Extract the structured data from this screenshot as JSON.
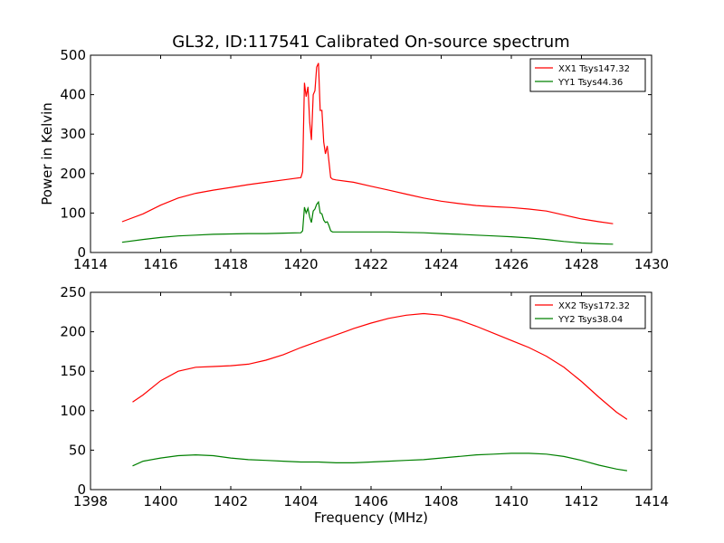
{
  "figure": {
    "title": "GL32, ID:117541 Calibrated On-source spectrum",
    "ylabel": "Power in Kelvin",
    "xlabel": "Frequency (MHz)"
  },
  "chart_data": [
    {
      "type": "line",
      "title": "GL32, ID:117541 Calibrated On-source spectrum",
      "xlabel": "",
      "ylabel": "Power in Kelvin",
      "xlim": [
        1414,
        1430
      ],
      "ylim": [
        0,
        500
      ],
      "xticks": [
        1414,
        1416,
        1418,
        1420,
        1422,
        1424,
        1426,
        1428,
        1430
      ],
      "yticks": [
        0,
        100,
        200,
        300,
        400,
        500
      ],
      "legend_position": "top-right",
      "grid": false,
      "series": [
        {
          "name": "XX1 Tsys147.32",
          "color": "#ff0000",
          "x": [
            1414.9,
            1415.5,
            1416.0,
            1416.5,
            1417.0,
            1417.5,
            1418.0,
            1418.5,
            1419.0,
            1419.5,
            1420.0,
            1420.05,
            1420.1,
            1420.15,
            1420.2,
            1420.25,
            1420.3,
            1420.35,
            1420.4,
            1420.45,
            1420.5,
            1420.55,
            1420.6,
            1420.65,
            1420.7,
            1420.75,
            1420.8,
            1420.85,
            1420.9,
            1421.0,
            1421.5,
            1422.0,
            1422.5,
            1423.0,
            1423.5,
            1424.0,
            1424.5,
            1425.0,
            1425.5,
            1426.0,
            1426.5,
            1427.0,
            1427.5,
            1428.0,
            1428.5,
            1428.9
          ],
          "y": [
            78,
            98,
            120,
            138,
            150,
            158,
            165,
            172,
            178,
            184,
            190,
            205,
            430,
            395,
            420,
            330,
            285,
            400,
            410,
            470,
            480,
            360,
            360,
            280,
            250,
            270,
            230,
            190,
            186,
            184,
            178,
            168,
            158,
            148,
            138,
            130,
            124,
            119,
            116,
            114,
            110,
            105,
            95,
            85,
            78,
            73
          ]
        },
        {
          "name": "YY1 Tsys44.36",
          "color": "#008000",
          "x": [
            1414.9,
            1415.5,
            1416.0,
            1416.5,
            1417.0,
            1417.5,
            1418.0,
            1418.5,
            1419.0,
            1419.5,
            1420.0,
            1420.05,
            1420.1,
            1420.15,
            1420.2,
            1420.25,
            1420.3,
            1420.35,
            1420.4,
            1420.45,
            1420.5,
            1420.55,
            1420.6,
            1420.65,
            1420.7,
            1420.75,
            1420.8,
            1420.85,
            1420.9,
            1421.0,
            1421.5,
            1422.0,
            1422.5,
            1423.0,
            1423.5,
            1424.0,
            1424.5,
            1425.0,
            1425.5,
            1426.0,
            1426.5,
            1427.0,
            1427.5,
            1428.0,
            1428.5,
            1428.9
          ],
          "y": [
            26,
            33,
            38,
            42,
            44,
            46,
            47,
            48,
            48,
            49,
            50,
            55,
            115,
            100,
            112,
            90,
            76,
            105,
            110,
            122,
            128,
            100,
            98,
            82,
            76,
            78,
            68,
            55,
            52,
            52,
            52,
            52,
            52,
            51,
            50,
            48,
            46,
            44,
            42,
            40,
            37,
            33,
            28,
            24,
            22,
            21
          ]
        }
      ]
    },
    {
      "type": "line",
      "title": "",
      "xlabel": "Frequency (MHz)",
      "ylabel": "",
      "xlim": [
        1398,
        1414
      ],
      "ylim": [
        0,
        250
      ],
      "xticks": [
        1398,
        1400,
        1402,
        1404,
        1406,
        1408,
        1410,
        1412,
        1414
      ],
      "yticks": [
        0,
        50,
        100,
        150,
        200,
        250
      ],
      "legend_position": "top-right",
      "grid": false,
      "series": [
        {
          "name": "XX2 Tsys172.32",
          "color": "#ff0000",
          "x": [
            1399.2,
            1399.5,
            1400.0,
            1400.5,
            1401.0,
            1401.5,
            1402.0,
            1402.5,
            1403.0,
            1403.5,
            1404.0,
            1404.5,
            1405.0,
            1405.5,
            1406.0,
            1406.5,
            1407.0,
            1407.5,
            1408.0,
            1408.5,
            1409.0,
            1409.5,
            1410.0,
            1410.5,
            1411.0,
            1411.5,
            1412.0,
            1412.5,
            1413.0,
            1413.3
          ],
          "y": [
            111,
            120,
            138,
            150,
            155,
            156,
            157,
            159,
            164,
            171,
            180,
            188,
            196,
            204,
            211,
            217,
            221,
            223,
            221,
            215,
            207,
            198,
            189,
            180,
            169,
            155,
            137,
            117,
            98,
            89
          ]
        },
        {
          "name": "YY2 Tsys38.04",
          "color": "#008000",
          "x": [
            1399.2,
            1399.5,
            1400.0,
            1400.5,
            1401.0,
            1401.5,
            1402.0,
            1402.5,
            1403.0,
            1403.5,
            1404.0,
            1404.5,
            1405.0,
            1405.5,
            1406.0,
            1406.5,
            1407.0,
            1407.5,
            1408.0,
            1408.5,
            1409.0,
            1409.5,
            1410.0,
            1410.5,
            1411.0,
            1411.5,
            1412.0,
            1412.5,
            1413.0,
            1413.3
          ],
          "y": [
            30,
            36,
            40,
            43,
            44,
            43,
            40,
            38,
            37,
            36,
            35,
            35,
            34,
            34,
            35,
            36,
            37,
            38,
            40,
            42,
            44,
            45,
            46,
            46,
            45,
            42,
            37,
            31,
            26,
            24
          ]
        }
      ]
    }
  ]
}
